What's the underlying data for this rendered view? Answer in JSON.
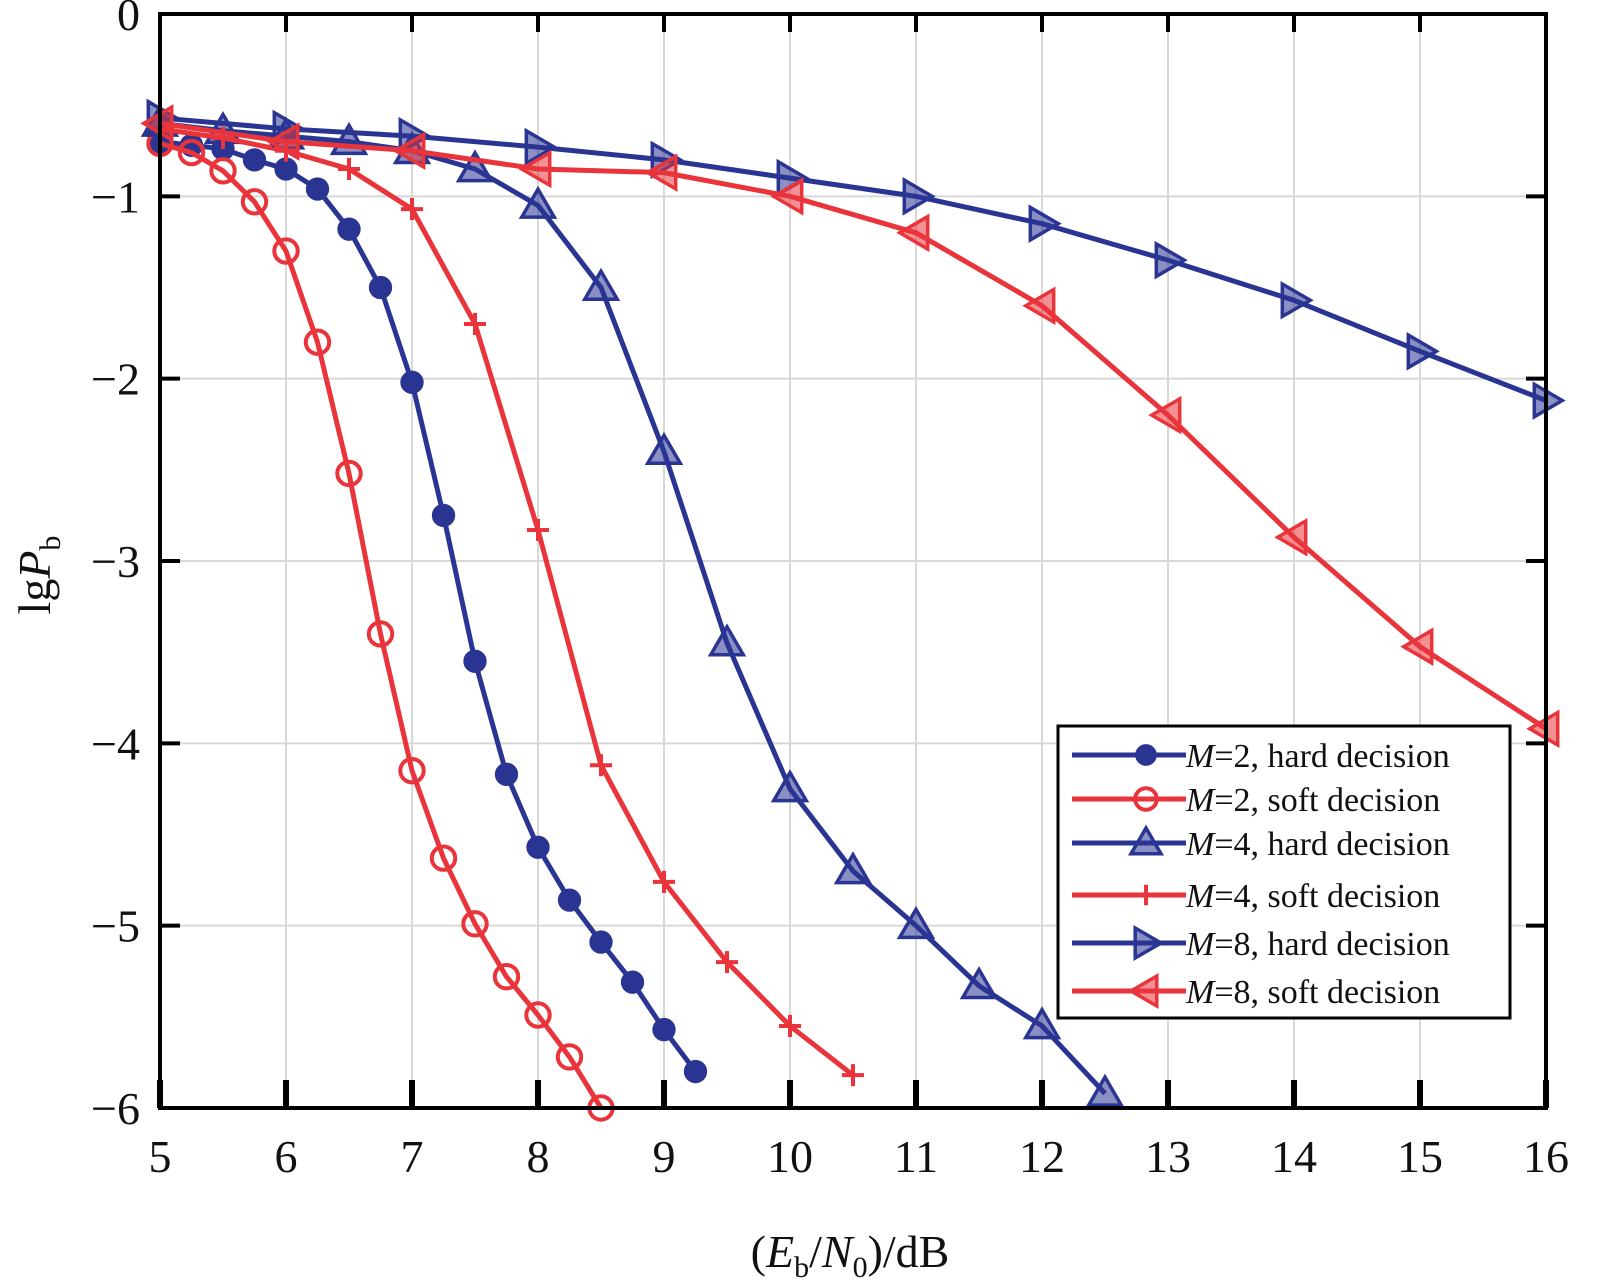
{
  "chart_data": {
    "type": "line",
    "title": "",
    "xlabel": {
      "open": "(",
      "E": "E",
      "b": "b",
      "slash": "/",
      "N": "N",
      "zero": "0",
      "close": ")/dB"
    },
    "ylabel": {
      "lg": "lg",
      "P": "P",
      "b": "b"
    },
    "xlim": [
      5,
      16
    ],
    "ylim": [
      -6,
      0
    ],
    "xticks": [
      "5",
      "6",
      "7",
      "8",
      "9",
      "10",
      "11",
      "12",
      "13",
      "14",
      "15",
      "16"
    ],
    "yticks": [
      "0",
      "−1",
      "−2",
      "−3",
      "−4",
      "−5",
      "−6"
    ],
    "grid": true,
    "legend_position": "lower-right",
    "series": [
      {
        "name": {
          "M": "M",
          "rest": "=2, hard decision"
        },
        "color": "#2a3593",
        "marker": "circle-filled",
        "x": [
          5,
          5.25,
          5.5,
          5.75,
          6,
          6.25,
          6.5,
          6.75,
          7,
          7.25,
          7.5,
          7.75,
          8,
          8.25,
          8.5,
          8.75,
          9,
          9.25
        ],
        "y": [
          -0.7,
          -0.72,
          -0.74,
          -0.8,
          -0.85,
          -0.96,
          -1.18,
          -1.5,
          -2.02,
          -2.75,
          -3.55,
          -4.17,
          -4.57,
          -4.86,
          -5.09,
          -5.31,
          -5.57,
          -5.8
        ]
      },
      {
        "name": {
          "M": "M",
          "rest": "=2, soft decision"
        },
        "color": "#e8343a",
        "marker": "circle-open",
        "x": [
          5,
          5.25,
          5.5,
          5.75,
          6,
          6.25,
          6.5,
          6.75,
          7,
          7.25,
          7.5,
          7.75,
          8,
          8.25,
          8.5
        ],
        "y": [
          -0.71,
          -0.76,
          -0.86,
          -1.03,
          -1.3,
          -1.8,
          -2.52,
          -3.4,
          -4.15,
          -4.63,
          -4.99,
          -5.28,
          -5.49,
          -5.72,
          -6.0
        ]
      },
      {
        "name": {
          "M": "M",
          "rest": "=4, hard decision"
        },
        "color": "#2a3593",
        "marker": "triangle-up",
        "x": [
          5,
          5.5,
          6,
          6.5,
          7,
          7.5,
          8,
          8.5,
          9,
          9.5,
          10,
          10.5,
          11,
          11.5,
          12,
          12.5
        ],
        "y": [
          -0.6,
          -0.64,
          -0.67,
          -0.7,
          -0.75,
          -0.85,
          -1.05,
          -1.5,
          -2.4,
          -3.45,
          -4.25,
          -4.7,
          -5.0,
          -5.33,
          -5.55,
          -5.92
        ]
      },
      {
        "name": {
          "M": "M",
          "rest": "=4, soft decision"
        },
        "color": "#e8343a",
        "marker": "plus",
        "x": [
          5,
          5.5,
          6,
          6.5,
          7,
          7.5,
          8,
          8.5,
          9,
          9.5,
          10,
          10.5
        ],
        "y": [
          -0.63,
          -0.68,
          -0.75,
          -0.85,
          -1.07,
          -1.7,
          -2.83,
          -4.12,
          -4.76,
          -5.2,
          -5.55,
          -5.82
        ]
      },
      {
        "name": {
          "M": "M",
          "rest": "=8, hard decision"
        },
        "color": "#2a3593",
        "marker": "triangle-right",
        "x": [
          5,
          6,
          7,
          8,
          9,
          10,
          11,
          12,
          13,
          14,
          15,
          16
        ],
        "y": [
          -0.57,
          -0.63,
          -0.67,
          -0.73,
          -0.8,
          -0.9,
          -1.0,
          -1.15,
          -1.35,
          -1.57,
          -1.85,
          -2.12
        ]
      },
      {
        "name": {
          "M": "M",
          "rest": "=8, soft decision"
        },
        "color": "#e8343a",
        "marker": "triangle-left",
        "x": [
          5,
          6,
          7,
          8,
          9,
          10,
          11,
          12,
          13,
          14,
          15,
          16
        ],
        "y": [
          -0.6,
          -0.7,
          -0.75,
          -0.85,
          -0.87,
          -1.0,
          -1.2,
          -1.6,
          -2.2,
          -2.87,
          -3.47,
          -3.92
        ]
      }
    ]
  }
}
